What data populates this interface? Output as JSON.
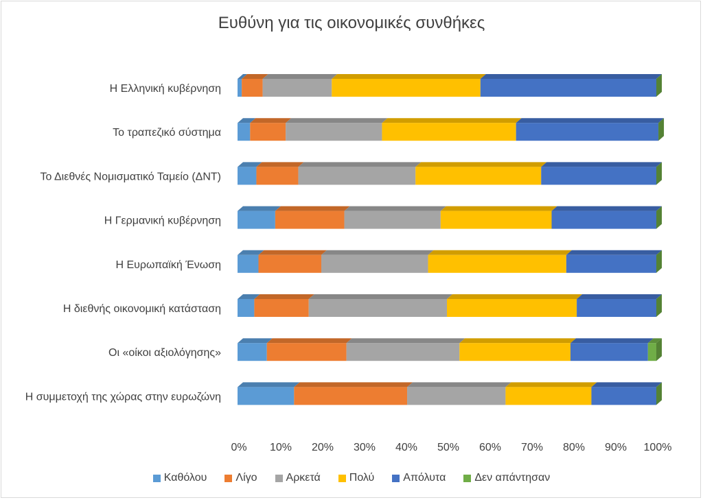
{
  "chart_data": {
    "type": "bar",
    "orientation": "horizontal",
    "stacked": "percent",
    "title": "Ευθύνη για τις οικονομικές συνθήκες",
    "categories": [
      "Η Ελληνική κυβέρνηση",
      "Το τραπεζικό σύστημα",
      "Το Διεθνές Νομισματικό Ταμείο (ΔΝΤ)",
      "Η Γερμανική κυβέρνηση",
      "Η Ευρωπαϊκή Ένωση",
      "Η διεθνής οικονομική κατάσταση",
      "Οι «οίκοι αξιολόγησης»",
      "Η συμμετοχή της χώρας στην ευρωζώνη"
    ],
    "series": [
      {
        "name": "Καθόλου",
        "color": "#5B9BD5",
        "values": [
          1,
          3,
          4.5,
          9,
          5,
          4,
          7,
          13.5
        ]
      },
      {
        "name": "Λίγο",
        "color": "#ED7D31",
        "values": [
          5,
          8.5,
          10,
          16.5,
          15,
          13,
          19,
          27
        ]
      },
      {
        "name": "Αρκετά",
        "color": "#A5A5A5",
        "values": [
          16.5,
          23,
          28,
          23,
          25.5,
          33,
          27,
          23.5
        ]
      },
      {
        "name": "Πολύ",
        "color": "#FFC000",
        "values": [
          35.5,
          32,
          30,
          26.5,
          33,
          31,
          26.5,
          20.5
        ]
      },
      {
        "name": "Απόλυτα",
        "color": "#4472C4",
        "values": [
          42,
          34,
          27.5,
          25,
          21.5,
          19,
          18.5,
          15.5
        ]
      },
      {
        "name": "Δεν απάντησαν",
        "color": "#70AD47",
        "values": [
          0,
          0,
          0,
          0,
          0,
          0,
          2,
          0
        ]
      }
    ],
    "xaxis": {
      "range": [
        0,
        100
      ],
      "ticks": [
        "0%",
        "10%",
        "20%",
        "30%",
        "40%",
        "50%",
        "60%",
        "70%",
        "80%",
        "90%",
        "100%"
      ]
    },
    "style": "3d",
    "grid": false,
    "legend_position": "bottom"
  }
}
